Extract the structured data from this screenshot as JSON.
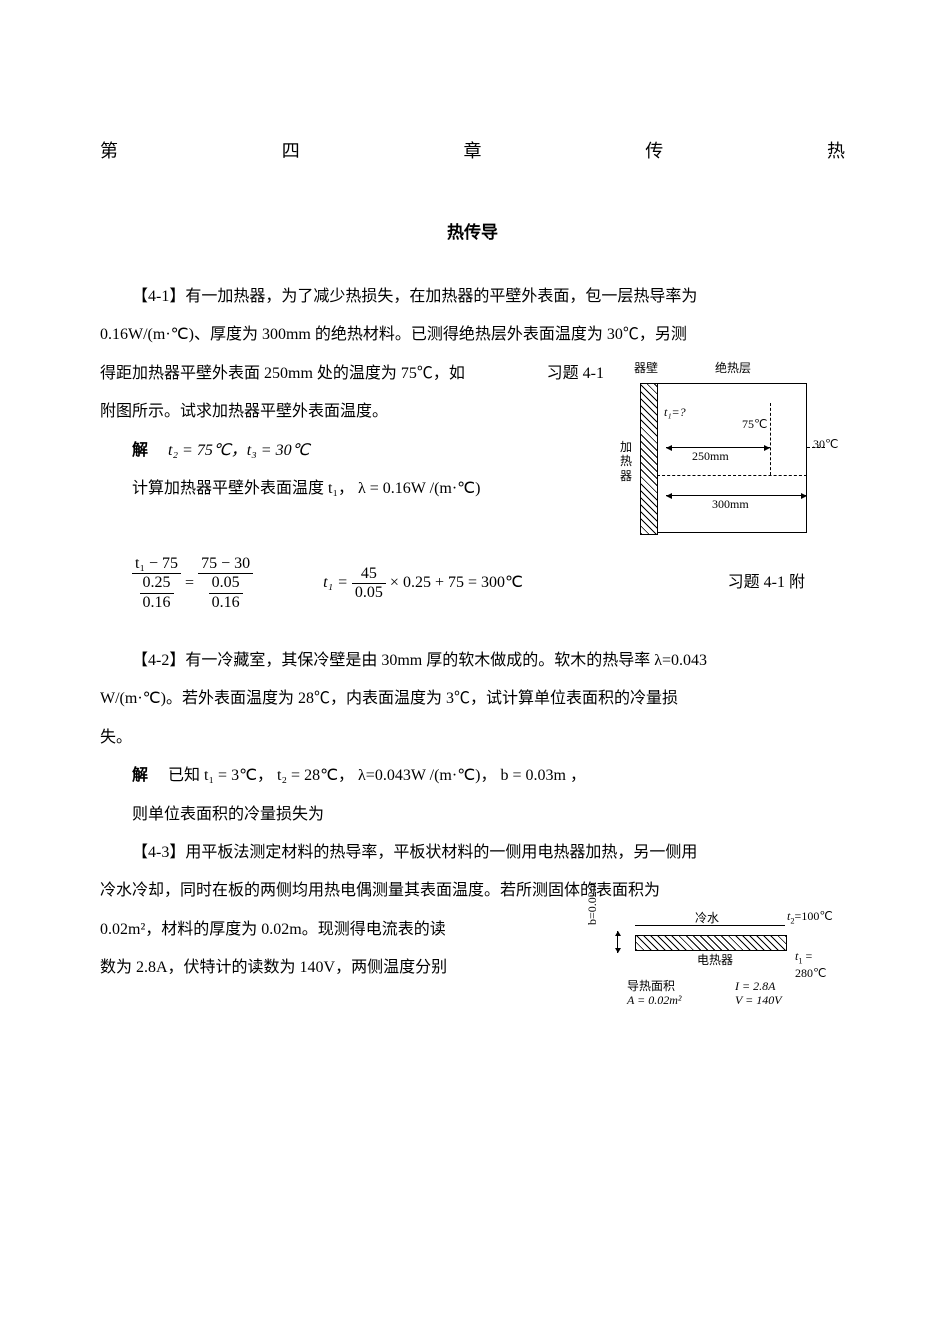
{
  "chapter_title": {
    "c1": "第",
    "c2": "四",
    "c3": "章",
    "c4": "传",
    "c5": "热"
  },
  "section_title": "热传导",
  "p41": {
    "l1": "【4-1】有一加热器，为了减少热损失，在加热器的平壁外表面，包一层热导率为",
    "l2a": "0.16W/(m·℃)、厚度为 300mm 的绝热材料。已测得绝热层外表面温度为 30℃，另测",
    "l3a": "得距加热器平壁外表面 250mm 处的温度为 75℃，如",
    "l3b": "习题 4-1",
    "l4": "附图所示。试求加热器平壁外表面温度。",
    "sol_label": "解",
    "sol_line": "t₂ = 75℃，t₃ = 30℃",
    "calc_line": "计算加热器平壁外表面温度 t₁，  λ = 0.16W /(m·℃)"
  },
  "eq41": {
    "lhs_num": "t₁ − 75",
    "lhs_den_top": "0.25",
    "lhs_den_bot": "0.16",
    "eq1": "=",
    "rhs_num": "75 − 30",
    "rhs_den_top": "0.05",
    "rhs_den_bot": "0.16",
    "r2_pre": "t₁ =",
    "r2_num": "45",
    "r2_den": "0.05",
    "r2_post": "× 0.25 + 75 = 300℃",
    "caption": "习题  4-1  附"
  },
  "fig41": {
    "wall_label_top": "器壁",
    "ins_label": "绝热层",
    "heater_label": "加热器",
    "t1_label": "t₁=?",
    "t75": "75℃",
    "dim250": "250mm",
    "t30": "30℃",
    "dim300": "300mm"
  },
  "p42": {
    "l1": "【4-2】有一冷藏室，其保冷壁是由 30mm 厚的软木做成的。软木的热导率 λ=0.043",
    "l2": "W/(m·℃)。若外表面温度为 28℃，内表面温度为 3℃，试计算单位表面积的冷量损",
    "l3": "失。",
    "sol_label": "解",
    "sol_line": "已知 t₁ = 3℃，   t₂ = 28℃，   λ=0.043W /(m·℃)，   b = 0.03m ，",
    "then": "则单位表面积的冷量损失为"
  },
  "p43": {
    "l1": "【4-3】用平板法测定材料的热导率，平板状材料的一侧用电热器加热，另一侧用",
    "l2": "冷水冷却，同时在板的两侧均用热电偶测量其表面温度。若所测固体的表面积为",
    "l3a": "0.02m²，材料的厚度为 0.02m。现测得电流表的读",
    "l4": "数为 2.8A，伏特计的读数为 140V，两侧温度分别"
  },
  "fig43": {
    "cold": "冷水",
    "heater": "电热器",
    "t2": "t₂=100℃",
    "t1": "t₁ = 280℃",
    "thick": "b=0.02m",
    "area_l1": "导热面积",
    "area_l2": "A = 0.02m²",
    "I": "I = 2.8A",
    "V": "V = 140V"
  }
}
